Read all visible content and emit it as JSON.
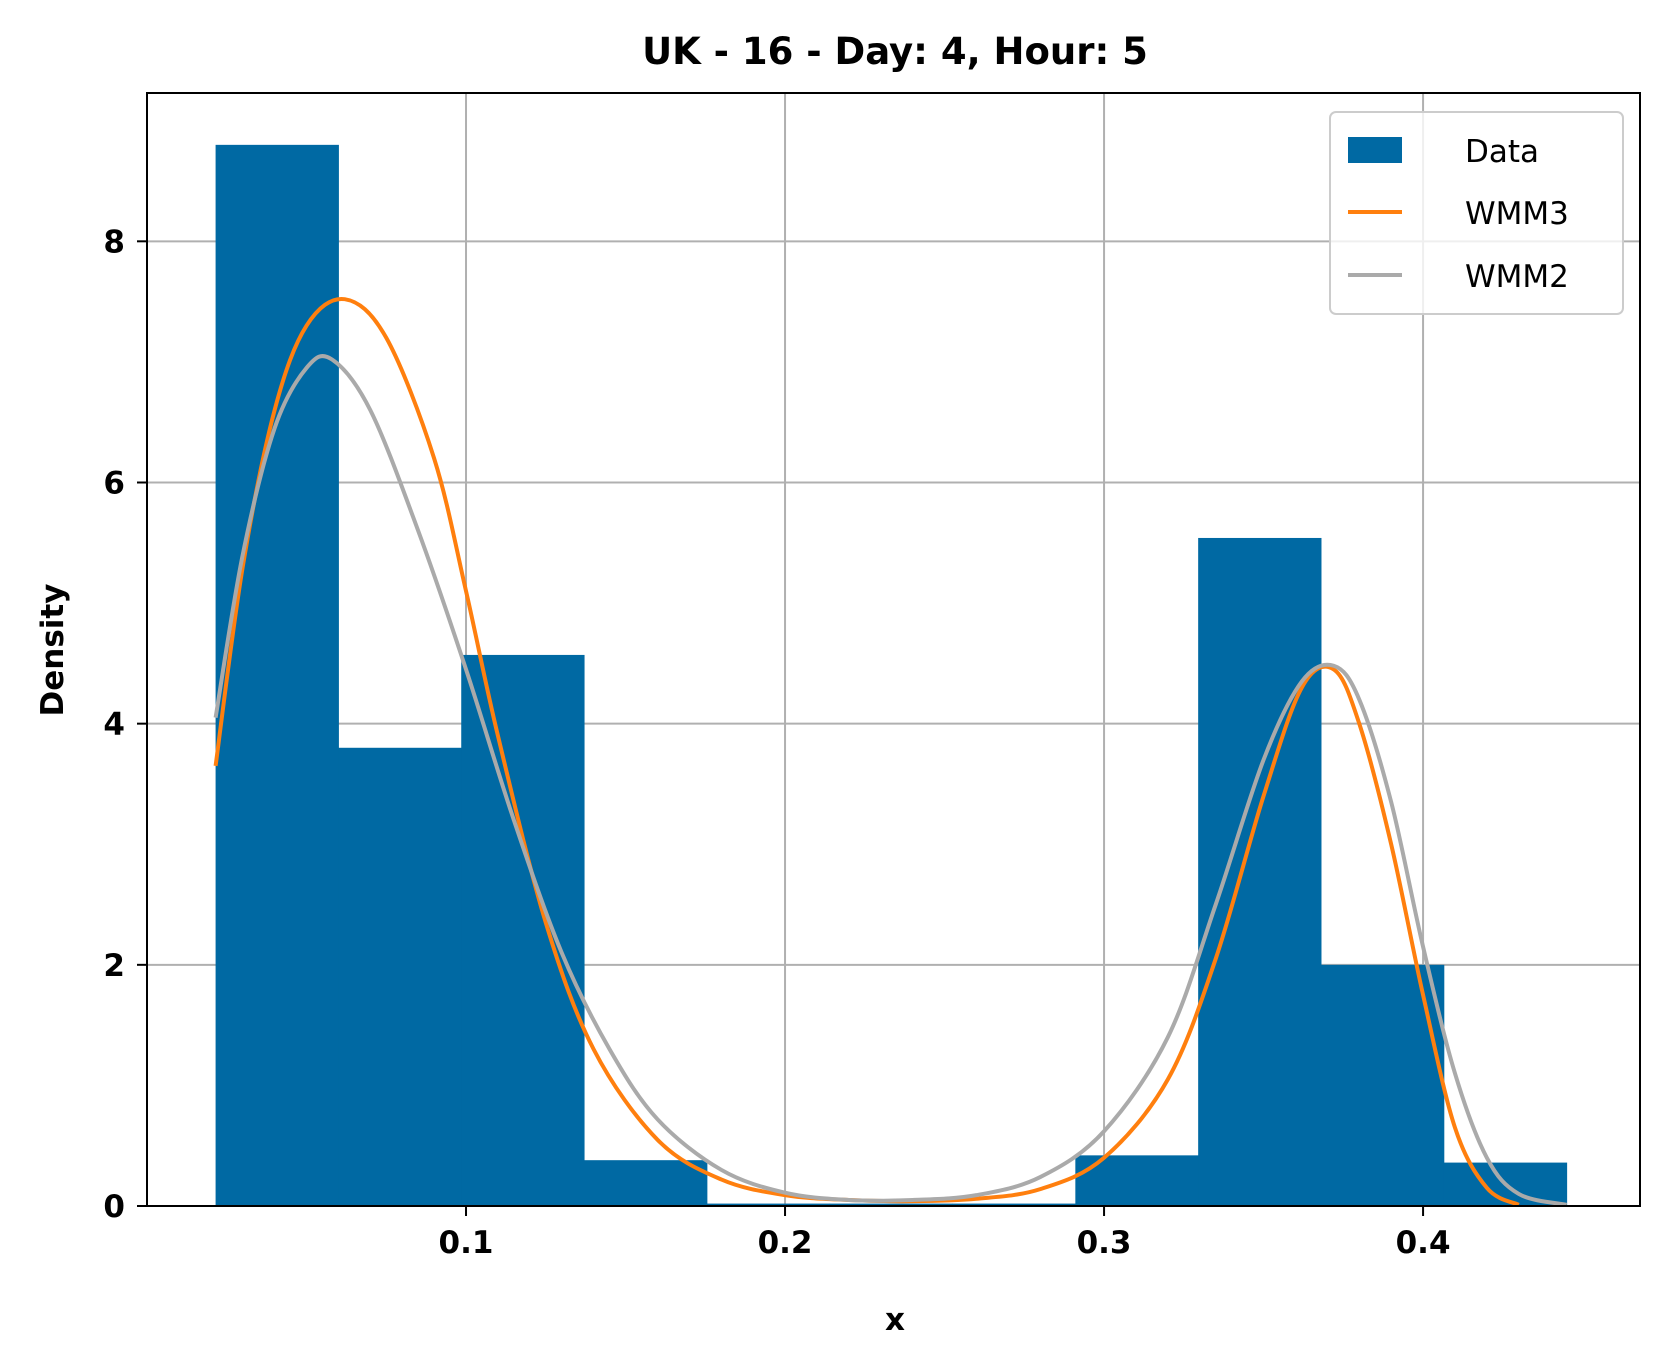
{
  "chart_data": {
    "type": "bar",
    "title": "UK - 16 - Day: 4, Hour: 5",
    "xlabel": "x",
    "ylabel": "Density",
    "xlim": [
      0.0,
      0.468
    ],
    "ylim": [
      0,
      9.23
    ],
    "xticks": [
      0.1,
      0.2,
      0.3,
      0.4
    ],
    "xtick_labels": [
      "0.1",
      "0.2",
      "0.3",
      "0.4"
    ],
    "yticks": [
      0,
      2,
      4,
      6,
      8
    ],
    "ytick_labels": [
      "0",
      "2",
      "4",
      "6",
      "8"
    ],
    "grid": true,
    "legend": {
      "position": "top-right",
      "entries": [
        {
          "label": "Data",
          "color": "#0069a3",
          "kind": "patch"
        },
        {
          "label": "WMM3",
          "color": "#ff7f0e",
          "kind": "line"
        },
        {
          "label": "WMM2",
          "color": "#aaaaaa",
          "kind": "line"
        }
      ]
    },
    "histogram": {
      "name": "Data",
      "color": "#0069a3",
      "bin_edges": [
        0.0215,
        0.06,
        0.0985,
        0.137,
        0.1755,
        0.214,
        0.2525,
        0.291,
        0.3295,
        0.368,
        0.4065,
        0.445
      ],
      "densities": [
        8.8,
        3.8,
        4.57,
        0.38,
        0.02,
        0.02,
        0.02,
        0.42,
        5.54,
        2.0,
        0.36
      ]
    },
    "series": [
      {
        "name": "WMM3",
        "color": "#ff7f0e",
        "x": [
          0.0215,
          0.03,
          0.04,
          0.05,
          0.062,
          0.075,
          0.09,
          0.1,
          0.11,
          0.125,
          0.14,
          0.16,
          0.18,
          0.2,
          0.22,
          0.24,
          0.26,
          0.28,
          0.3,
          0.32,
          0.335,
          0.35,
          0.362,
          0.372,
          0.38,
          0.39,
          0.4,
          0.41,
          0.42,
          0.43
        ],
        "y": [
          3.65,
          5.3,
          6.6,
          7.3,
          7.52,
          7.2,
          6.2,
          5.1,
          3.9,
          2.35,
          1.3,
          0.55,
          0.22,
          0.09,
          0.05,
          0.04,
          0.06,
          0.14,
          0.4,
          1.05,
          2.05,
          3.4,
          4.3,
          4.45,
          4.0,
          3.0,
          1.75,
          0.65,
          0.15,
          0.01
        ]
      },
      {
        "name": "WMM2",
        "color": "#aaaaaa",
        "x": [
          0.0215,
          0.03,
          0.04,
          0.05,
          0.058,
          0.07,
          0.085,
          0.1,
          0.115,
          0.13,
          0.145,
          0.16,
          0.18,
          0.2,
          0.22,
          0.24,
          0.26,
          0.28,
          0.3,
          0.32,
          0.335,
          0.35,
          0.362,
          0.372,
          0.38,
          0.39,
          0.4,
          0.41,
          0.42,
          0.43,
          0.445
        ],
        "y": [
          4.05,
          5.4,
          6.45,
          6.95,
          7.02,
          6.6,
          5.6,
          4.45,
          3.2,
          2.1,
          1.3,
          0.72,
          0.3,
          0.11,
          0.05,
          0.05,
          0.09,
          0.24,
          0.62,
          1.4,
          2.5,
          3.7,
          4.35,
          4.48,
          4.2,
          3.35,
          2.15,
          1.1,
          0.4,
          0.1,
          0.01
        ]
      }
    ]
  }
}
